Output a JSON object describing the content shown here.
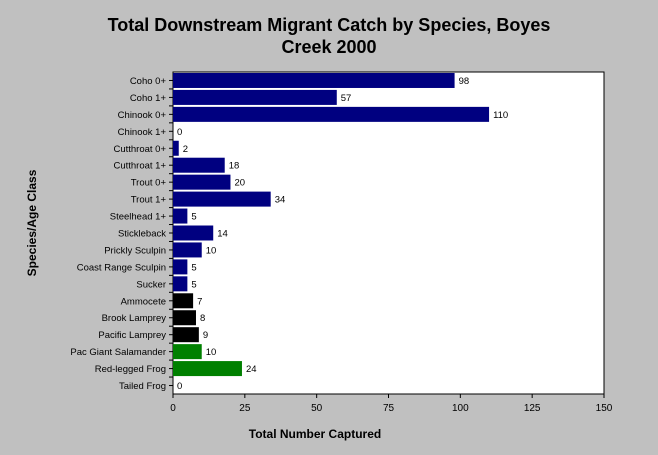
{
  "chart_data": {
    "type": "bar",
    "orientation": "horizontal",
    "title_line1": "Total Downstream Migrant Catch by Species, Boyes",
    "title_line2": "Creek 2000",
    "xlabel": "Total Number Captured",
    "ylabel": "Species/Age Class",
    "xlim": [
      0,
      150
    ],
    "xticks": [
      0,
      25,
      50,
      75,
      100,
      125,
      150
    ],
    "grid": false,
    "legend": "none",
    "categories": [
      "Coho 0+",
      "Coho 1+",
      "Chinook 0+",
      "Chinook 1+",
      "Cutthroat 0+",
      "Cutthroat 1+",
      "Trout 0+",
      "Trout 1+",
      "Steelhead 1+",
      "Stickleback",
      "Prickly Sculpin",
      "Coast Range Sculpin",
      "Sucker",
      "Ammocete",
      "Brook Lamprey",
      "Pacific Lamprey",
      "Pac Giant Salamander",
      "Red-legged Frog",
      "Tailed Frog"
    ],
    "values": [
      98,
      57,
      110,
      0,
      2,
      18,
      20,
      34,
      5,
      14,
      10,
      5,
      5,
      7,
      8,
      9,
      10,
      24,
      0
    ],
    "bar_colors": [
      "#000080",
      "#000080",
      "#000080",
      "#000080",
      "#000080",
      "#000080",
      "#000080",
      "#000080",
      "#000080",
      "#000080",
      "#000080",
      "#000080",
      "#000080",
      "#000000",
      "#000000",
      "#000000",
      "#008000",
      "#008000",
      "#008000"
    ],
    "colors": {
      "background": "#c0c0c0",
      "plot_area": "#ffffff",
      "fish": "#000080",
      "lamprey": "#000000",
      "amphibian": "#008000"
    }
  }
}
